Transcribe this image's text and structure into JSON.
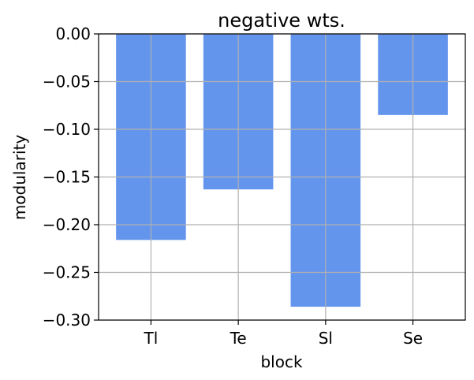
{
  "chart_data": {
    "type": "bar",
    "title": "negative wts.",
    "xlabel": "block",
    "ylabel": "modularity",
    "categories": [
      "Tl",
      "Te",
      "Sl",
      "Se"
    ],
    "values": [
      -0.216,
      -0.163,
      -0.286,
      -0.085
    ],
    "ylim": [
      -0.3,
      0.0
    ],
    "yticks": [
      0.0,
      -0.05,
      -0.1,
      -0.15,
      -0.2,
      -0.25,
      -0.3
    ],
    "ytick_labels": [
      "0.00",
      "−0.05",
      "−0.10",
      "−0.15",
      "−0.20",
      "−0.25",
      "−0.30"
    ],
    "grid": true,
    "bar_color": "#6495ED"
  }
}
